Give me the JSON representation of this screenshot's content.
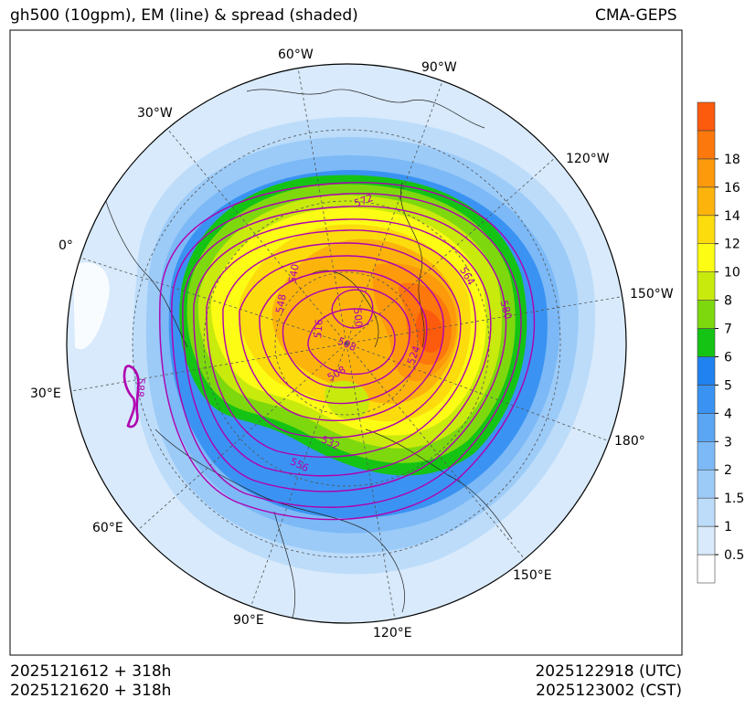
{
  "header": {
    "title": "gh500 (10gpm), EM (line) & spread (shaded)",
    "model": "CMA-GEPS"
  },
  "footer": {
    "init_utc": "2025121612 + 318h",
    "init_cst": "2025121620 + 318h",
    "valid_utc": "2025122918 (UTC)",
    "valid_cst": "2025123002 (CST)"
  },
  "map": {
    "projection": "north-polar-stereographic",
    "longitude_labels": [
      "60°W",
      "90°W",
      "30°W",
      "120°W",
      "0°",
      "150°W",
      "30°E",
      "180°",
      "60°E",
      "150°E",
      "90°E",
      "120°E"
    ],
    "contour_labels": [
      "572",
      "564",
      "580",
      "540",
      "548",
      "516",
      "500",
      "508",
      "524",
      "508",
      "532",
      "556",
      "588"
    ],
    "contour_color": "#b000b0",
    "shading_field": "ensemble spread",
    "contour_field": "ensemble mean gh500"
  },
  "colorbar": {
    "levels": [
      "0.5",
      "1",
      "1.5",
      "2",
      "3",
      "4",
      "5",
      "6",
      "7",
      "8",
      "10",
      "12",
      "14",
      "16",
      "18"
    ],
    "colors": [
      "#ffffff",
      "#d8eafb",
      "#bcdcfa",
      "#9ccbf8",
      "#7cb9f6",
      "#5aa6f4",
      "#3a93f2",
      "#1f82f0",
      "#14c314",
      "#7ed80e",
      "#c8ea0c",
      "#fcfc14",
      "#fcdc0c",
      "#fcb40c",
      "#fc9a0c",
      "#fc780c",
      "#fc5a0c"
    ]
  }
}
